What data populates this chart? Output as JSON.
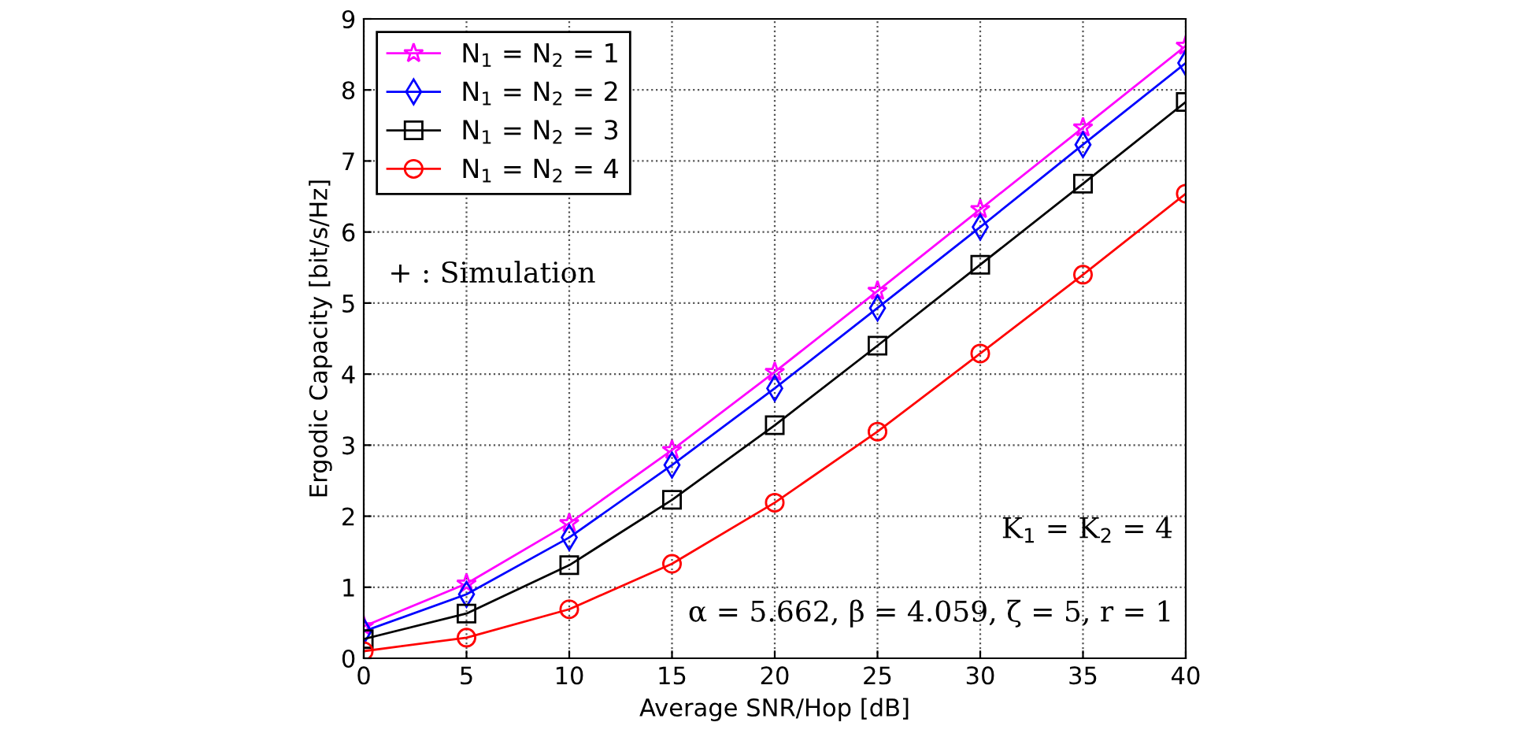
{
  "chart_data": {
    "type": "line",
    "xlabel": "Average SNR/Hop [dB]",
    "ylabel": "Ergodic Capacity [bit/s/Hz]",
    "x": [
      0,
      5,
      10,
      15,
      20,
      25,
      30,
      35,
      40
    ],
    "series": [
      {
        "name": "N$_{1}$ = N$_{2}$ = 1",
        "color": "#ff00ff",
        "marker": "star",
        "values": [
          0.45,
          1.05,
          1.9,
          2.93,
          4.03,
          5.17,
          6.32,
          7.47,
          8.62
        ]
      },
      {
        "name": "N$_{1}$ = N$_{2}$ = 2",
        "color": "#0000ff",
        "marker": "diamond",
        "values": [
          0.38,
          0.9,
          1.7,
          2.72,
          3.8,
          4.93,
          6.07,
          7.23,
          8.38
        ]
      },
      {
        "name": "N$_{1}$ = N$_{2}$ = 3",
        "color": "#000000",
        "marker": "square",
        "values": [
          0.27,
          0.63,
          1.31,
          2.23,
          3.28,
          4.4,
          5.54,
          6.68,
          7.83
        ]
      },
      {
        "name": "N$_{1}$ = N$_{2}$ = 4",
        "color": "#ff0000",
        "marker": "circle",
        "values": [
          0.1,
          0.29,
          0.69,
          1.33,
          2.19,
          3.19,
          4.29,
          5.4,
          6.54
        ]
      }
    ],
    "xlim": [
      0,
      40
    ],
    "xticks": [
      0,
      5,
      10,
      15,
      20,
      25,
      30,
      35,
      40
    ],
    "ylim": [
      0,
      9
    ],
    "yticks": [
      0,
      1,
      2,
      3,
      4,
      5,
      6,
      7,
      8,
      9
    ],
    "grid": true,
    "legend": "top left",
    "line_style": "solid",
    "annotations": [
      "+ : Simulation",
      "K$_{1}$ = K$_{2}$ = 4",
      "α = 5.662, β = 4.059, ζ = 5, r = 1"
    ]
  }
}
